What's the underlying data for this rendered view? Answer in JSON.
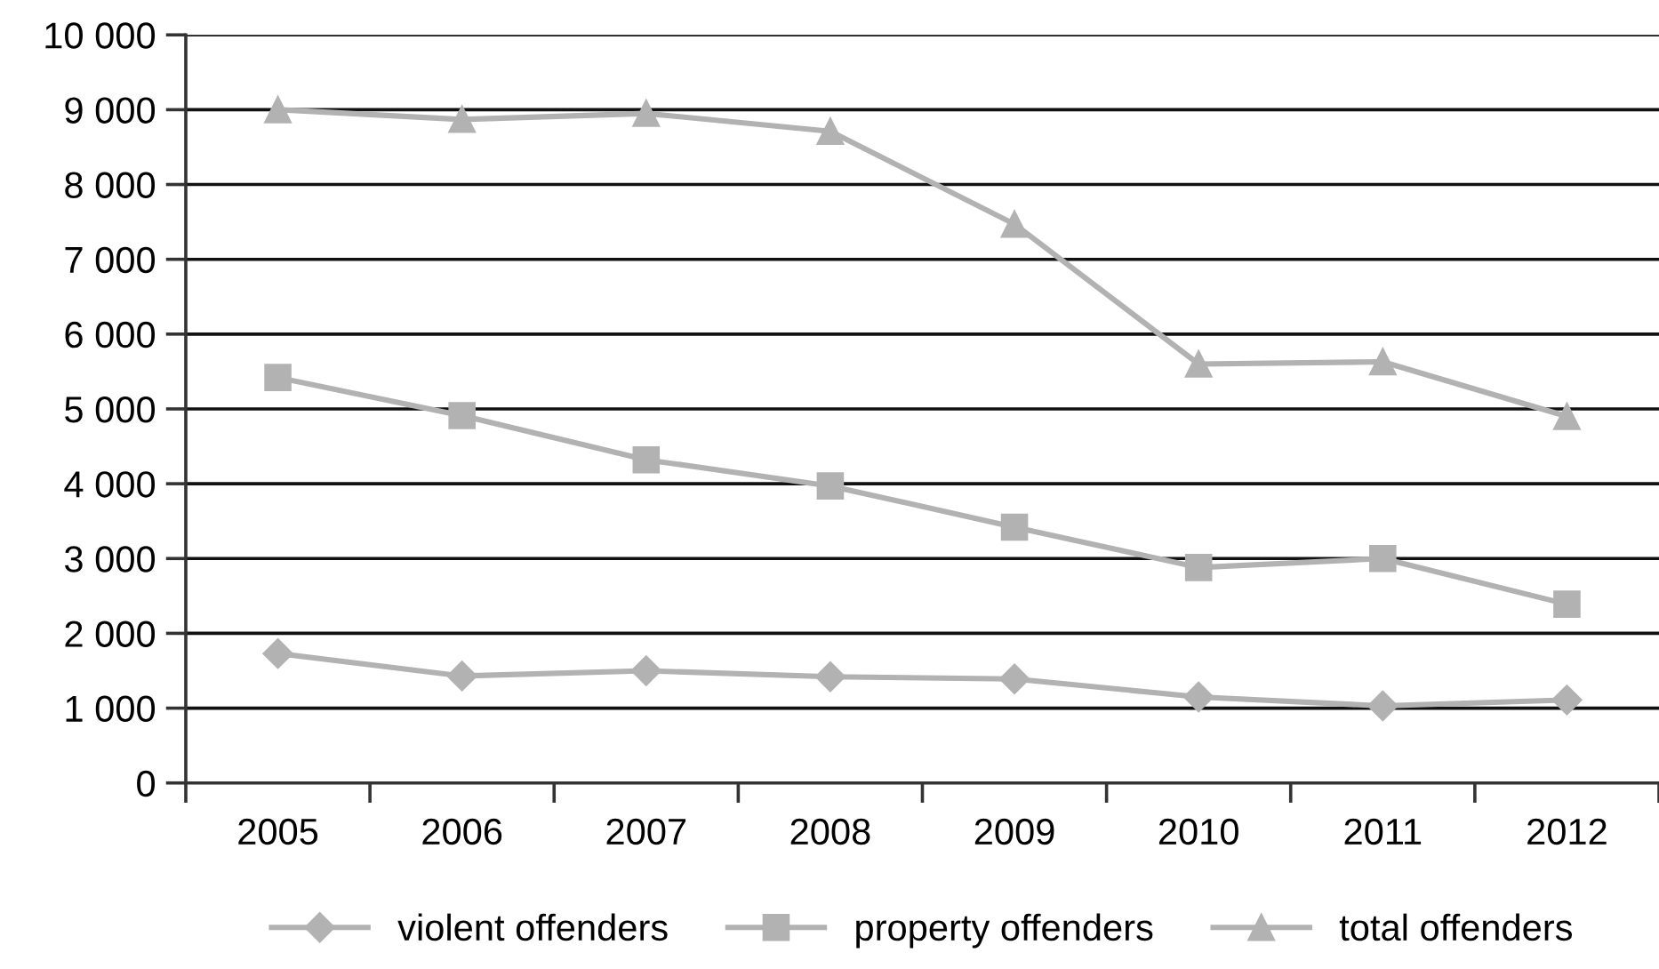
{
  "chart_data": {
    "type": "line",
    "categories": [
      "2005",
      "2006",
      "2007",
      "2008",
      "2009",
      "2010",
      "2011",
      "2012"
    ],
    "series": [
      {
        "name": "violent offenders",
        "color": "#b2b2b2",
        "marker": "diamond",
        "values": [
          1730,
          1430,
          1500,
          1420,
          1390,
          1150,
          1030,
          1110
        ]
      },
      {
        "name": "property offenders",
        "color": "#b2b2b2",
        "marker": "square",
        "values": [
          5420,
          4910,
          4320,
          3970,
          3420,
          2880,
          3000,
          2390
        ]
      },
      {
        "name": "total offenders",
        "color": "#b2b2b2",
        "marker": "triangle",
        "values": [
          9000,
          8870,
          8950,
          8710,
          7470,
          5600,
          5630,
          4900
        ]
      }
    ],
    "ylim": [
      0,
      10000
    ],
    "yticks": [
      0,
      {
        "value": 1000,
        "label": "1 000"
      },
      {
        "value": 2000,
        "label": "2 000"
      },
      {
        "value": 3000,
        "label": "3 000"
      },
      {
        "value": 4000,
        "label": "4 000"
      },
      {
        "value": 5000,
        "label": "5 000"
      },
      {
        "value": 6000,
        "label": "6 000"
      },
      {
        "value": 7000,
        "label": "7 000"
      },
      {
        "value": 8000,
        "label": "8 000"
      },
      {
        "value": 9000,
        "label": "9 000"
      },
      {
        "value": 10000,
        "label": "10 000"
      }
    ],
    "grid": "y",
    "legend": "bottom",
    "line_style": "solid"
  }
}
